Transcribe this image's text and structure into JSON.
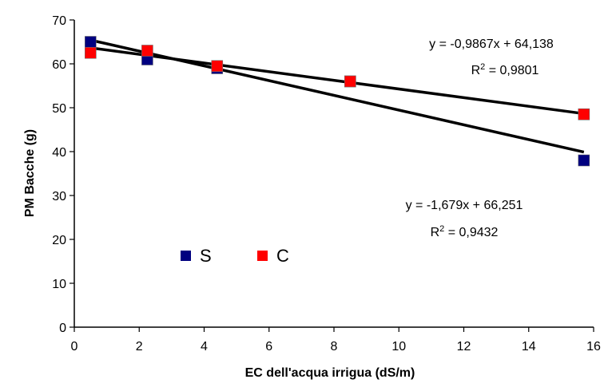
{
  "chart_data": {
    "type": "scatter",
    "title": "",
    "xlabel": "EC dell'acqua irrigua (dS/m)",
    "ylabel": "PM Bacche (g)",
    "xlim": [
      0,
      16
    ],
    "ylim": [
      0,
      70
    ],
    "xticks": [
      0,
      2,
      4,
      6,
      8,
      10,
      12,
      14,
      16
    ],
    "yticks": [
      0,
      10,
      20,
      30,
      40,
      50,
      60,
      70
    ],
    "grid": false,
    "legend_position": "lower-left",
    "series": [
      {
        "name": "S",
        "color": "#000080",
        "marker": "square",
        "x": [
          0.5,
          2.25,
          4.4,
          8.5,
          15.7
        ],
        "y": [
          65,
          61,
          59,
          56,
          38
        ],
        "trendline": {
          "slope": -1.679,
          "intercept": 66.251
        },
        "equation": "y = -1,679x + 66,251",
        "r2_label": "R",
        "r2_value": " = 0,9432"
      },
      {
        "name": "C",
        "color": "#ff0000",
        "marker": "square",
        "x": [
          0.5,
          2.25,
          4.4,
          8.5,
          15.7
        ],
        "y": [
          62.5,
          63,
          59.5,
          56,
          48.5
        ],
        "trendline": {
          "slope": -0.9867,
          "intercept": 64.138
        },
        "equation": "y = -0,9867x + 64,138",
        "r2_label": "R",
        "r2_value": " = 0,9801"
      }
    ]
  }
}
